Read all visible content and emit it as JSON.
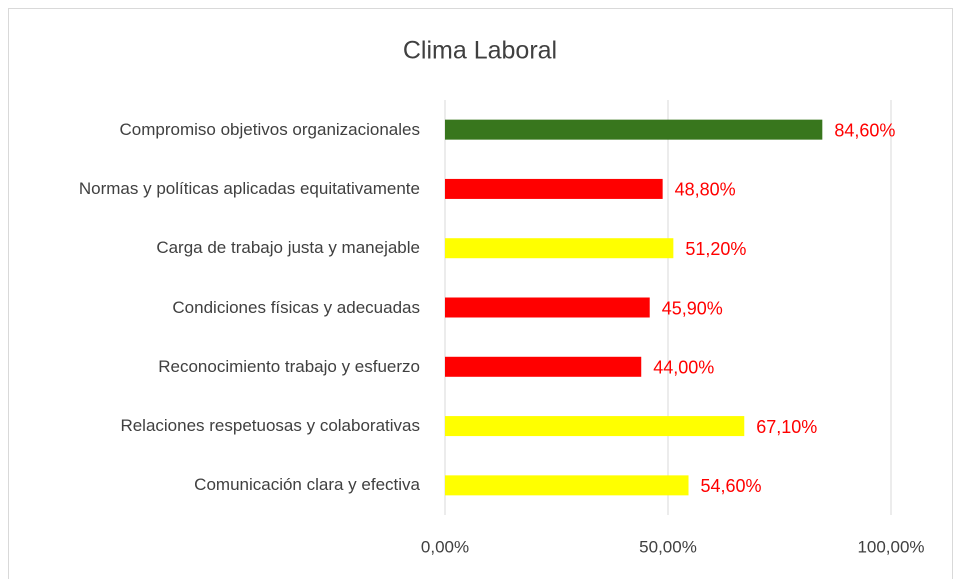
{
  "chart_data": {
    "type": "bar",
    "orientation": "horizontal",
    "title": "Clima Laboral",
    "categories": [
      "Compromiso objetivos organizacionales",
      "Normas y políticas aplicadas equitativamente",
      "Carga de trabajo justa y manejable",
      "Condiciones físicas y adecuadas",
      "Reconocimiento trabajo y esfuerzo",
      "Relaciones respetuosas y colaborativas",
      "Comunicación clara y efectiva"
    ],
    "values": [
      84.6,
      48.8,
      51.2,
      45.9,
      44.0,
      67.1,
      54.6
    ],
    "value_labels": [
      "84,60%",
      "48,80%",
      "51,20%",
      "45,90%",
      "44,00%",
      "67,10%",
      "54,60%"
    ],
    "colors": [
      "#38761d",
      "#ff0000",
      "#ffff00",
      "#ff0000",
      "#ff0000",
      "#ffff00",
      "#ffff00"
    ],
    "label_color": "#ff0000",
    "xlim": [
      0,
      100
    ],
    "xticks": [
      {
        "value": 0,
        "label": "0,00%"
      },
      {
        "value": 50,
        "label": "50,00%"
      },
      {
        "value": 100,
        "label": "100,00%"
      }
    ],
    "grid": true
  }
}
